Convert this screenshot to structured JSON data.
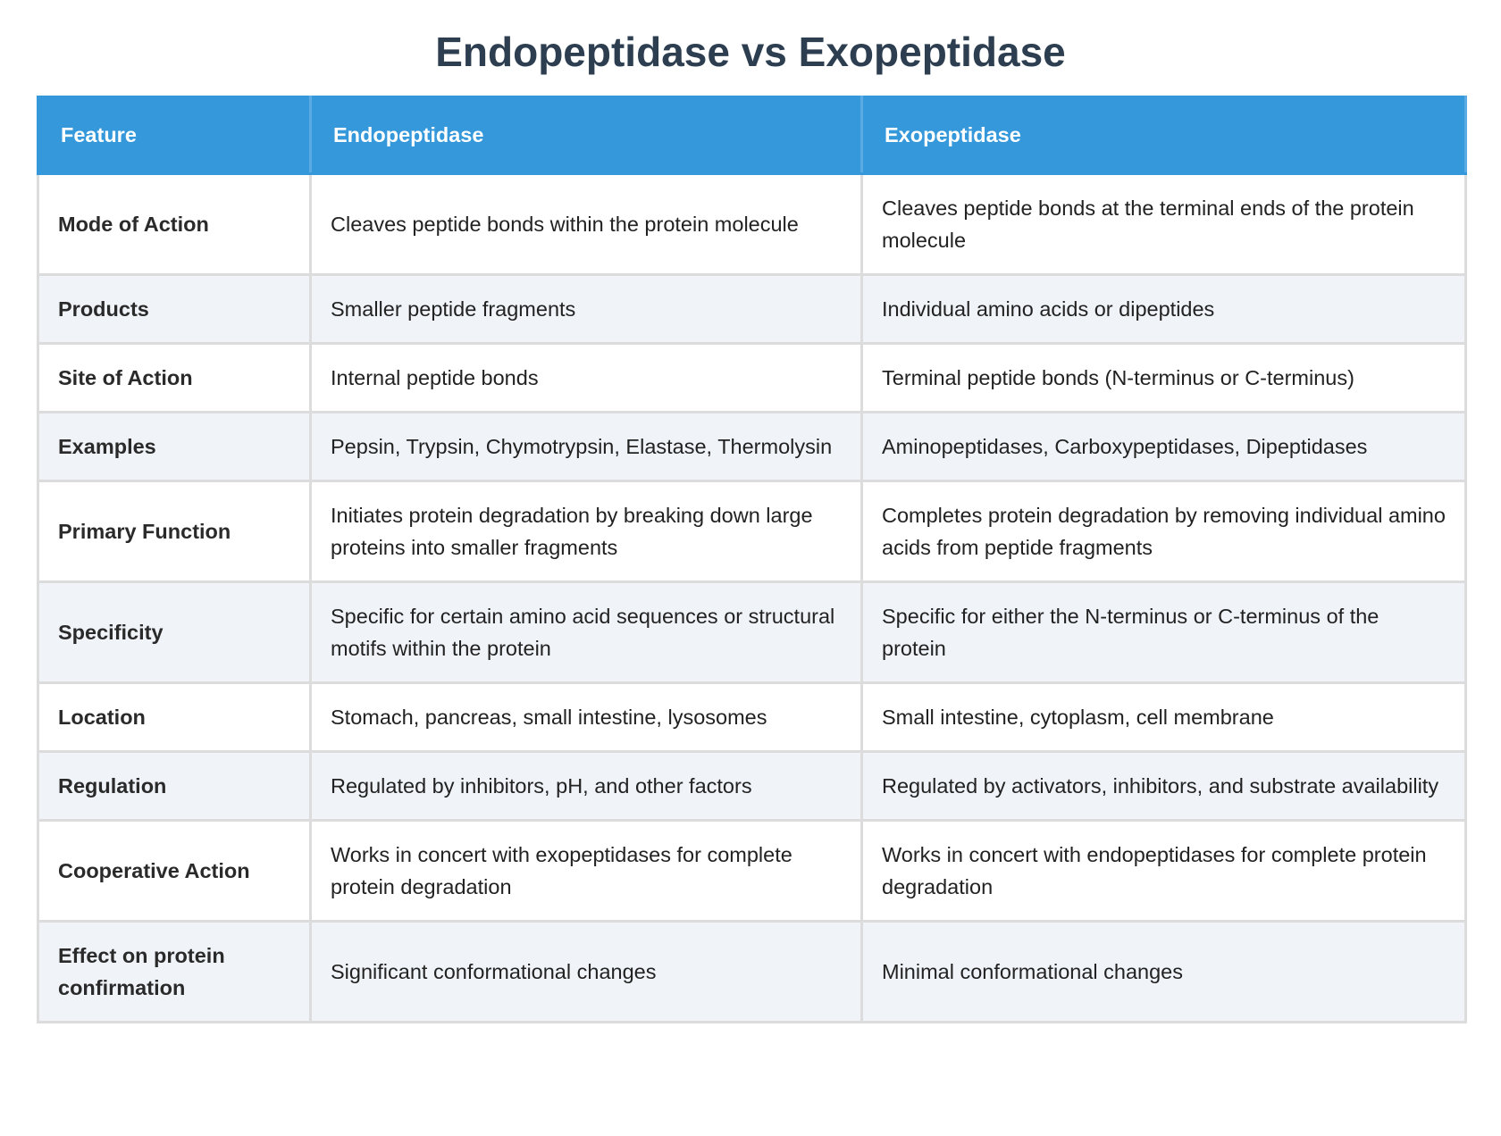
{
  "header": {
    "title": "Endopeptidase vs Exopeptidase"
  },
  "table": {
    "columns": [
      "Feature",
      "Endopeptidase",
      "Exopeptidase"
    ],
    "rows": [
      [
        "Mode of Action",
        "Cleaves peptide bonds within the protein molecule",
        "Cleaves peptide bonds at the terminal ends of the protein molecule"
      ],
      [
        "Products",
        "Smaller peptide fragments",
        "Individual amino acids or dipeptides"
      ],
      [
        "Site of Action",
        "Internal peptide bonds",
        "Terminal peptide bonds (N-terminus or C-terminus)"
      ],
      [
        "Examples",
        "Pepsin, Trypsin, Chymotrypsin, Elastase, Thermolysin",
        "Aminopeptidases, Carboxypeptidases, Dipeptidases"
      ],
      [
        "Primary Function",
        "Initiates protein degradation by breaking down large proteins into smaller fragments",
        "Completes protein degradation by removing individual amino acids from peptide fragments"
      ],
      [
        "Specificity",
        "Specific for certain amino acid sequences or structural motifs within the protein",
        "Specific for either the N-terminus or C-terminus of the protein"
      ],
      [
        "Location",
        "Stomach, pancreas, small intestine, lysosomes",
        "Small intestine, cytoplasm, cell membrane"
      ],
      [
        "Regulation",
        "Regulated by inhibitors, pH, and other factors",
        "Regulated by activators, inhibitors, and substrate availability"
      ],
      [
        "Cooperative Action",
        "Works in concert with exopeptidases for complete protein degradation",
        "Works in concert with endopeptidases for complete protein degradation"
      ],
      [
        "Effect on protein confirmation",
        "Significant conformational changes",
        "Minimal conformational changes"
      ]
    ]
  }
}
